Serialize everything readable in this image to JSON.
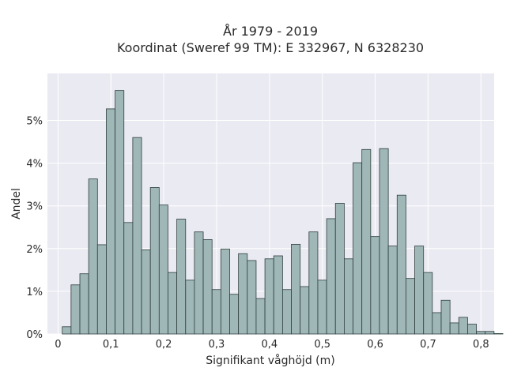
{
  "chart_data": {
    "type": "bar",
    "title_lines": [
      "År 1979 - 2019",
      "Koordinat (Sweref 99 TM): E 332967, N 6328230"
    ],
    "xlabel": "Signifikant våghöjd (m)",
    "ylabel": "Andel",
    "xlim": [
      -0.02,
      0.825
    ],
    "ylim": [
      0,
      6.1
    ],
    "bin_width": 0.01667,
    "bins_start": 0.008,
    "x_ticks": [
      {
        "value": 0,
        "label": "0"
      },
      {
        "value": 0.1,
        "label": "0,1"
      },
      {
        "value": 0.2,
        "label": "0,2"
      },
      {
        "value": 0.3,
        "label": "0,3"
      },
      {
        "value": 0.4,
        "label": "0,4"
      },
      {
        "value": 0.5,
        "label": "0,5"
      },
      {
        "value": 0.6,
        "label": "0,6"
      },
      {
        "value": 0.7,
        "label": "0,7"
      },
      {
        "value": 0.8,
        "label": "0,8"
      }
    ],
    "y_ticks": [
      {
        "value": 0,
        "label": "0%"
      },
      {
        "value": 1,
        "label": "1%"
      },
      {
        "value": 2,
        "label": "2%"
      },
      {
        "value": 3,
        "label": "3%"
      },
      {
        "value": 4,
        "label": "4%"
      },
      {
        "value": 5,
        "label": "5%"
      }
    ],
    "values": [
      0.17,
      1.15,
      1.41,
      3.63,
      2.09,
      5.27,
      5.7,
      2.61,
      4.6,
      1.97,
      3.43,
      3.02,
      1.44,
      2.69,
      1.26,
      2.39,
      2.21,
      1.04,
      1.99,
      0.93,
      1.88,
      1.72,
      0.83,
      1.76,
      1.83,
      1.04,
      2.1,
      1.11,
      2.39,
      1.26,
      2.7,
      3.06,
      1.76,
      4.01,
      4.32,
      2.28,
      4.34,
      2.06,
      3.25,
      1.3,
      2.06,
      1.44,
      0.5,
      0.79,
      0.26,
      0.39,
      0.23,
      0.06,
      0.06,
      0.01
    ],
    "colors": {
      "bar_fill": "#9fb7b7",
      "bar_edge": "#2f3f3f",
      "plot_bg": "#eaeaf2",
      "grid": "#ffffff"
    },
    "grid": true,
    "legend": "none"
  }
}
